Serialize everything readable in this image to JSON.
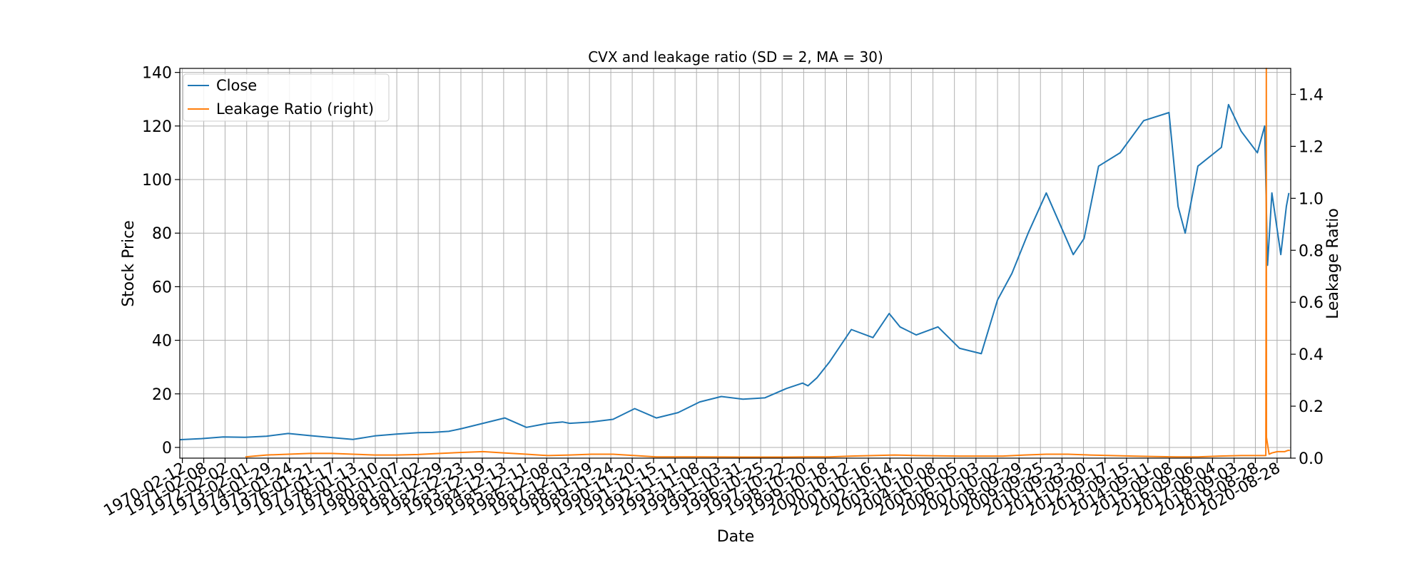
{
  "chart_data": {
    "type": "line",
    "title": "CVX and leakage ratio (SD = 2, MA = 30)",
    "xlabel": "Date",
    "ylabel": "Stock Price",
    "y2label": "Leakage Ratio",
    "grid": true,
    "legend_position": "top-left",
    "xlim": [
      "1969-12-31",
      "2021-04-15"
    ],
    "ylim": [
      -4,
      141.5
    ],
    "y2lim": [
      0.0,
      1.5
    ],
    "yticks": [
      0,
      20,
      40,
      60,
      80,
      100,
      120,
      140
    ],
    "y2ticks": [
      0.0,
      0.2,
      0.4,
      0.6,
      0.8,
      1.0,
      1.2,
      1.4
    ],
    "xticks": [
      "1970-02-12",
      "1971-02-08",
      "1972-02-02",
      "1973-02-01",
      "1974-01-29",
      "1975-01-24",
      "1976-01-21",
      "1977-01-17",
      "1978-01-13",
      "1979-01-10",
      "1980-01-07",
      "1981-01-02",
      "1981-12-29",
      "1982-12-23",
      "1983-12-19",
      "1984-12-13",
      "1985-12-11",
      "1986-12-08",
      "1987-12-03",
      "1988-11-29",
      "1989-11-24",
      "1990-11-20",
      "1991-11-15",
      "1992-11-11",
      "1993-11-08",
      "1994-11-03",
      "1995-10-31",
      "1996-10-25",
      "1997-10-22",
      "1998-10-20",
      "1999-10-18",
      "2000-10-12",
      "2001-10-16",
      "2002-10-14",
      "2003-10-10",
      "2004-10-08",
      "2005-10-05",
      "2006-10-03",
      "2007-10-02",
      "2008-09-29",
      "2009-09-25",
      "2010-09-23",
      "2011-09-20",
      "2012-09-17",
      "2013-09-15",
      "2014-09-11",
      "2015-09-08",
      "2016-09-06",
      "2017-09-04",
      "2018-09-03",
      "2019-08-28",
      "2020-08-28"
    ],
    "series": [
      {
        "name": "Close",
        "color": "#1f77b4",
        "axis": "left",
        "x": [
          "1970-01-01",
          "1971-01-01",
          "1972-01-01",
          "1973-01-01",
          "1974-01-01",
          "1975-01-01",
          "1976-01-01",
          "1977-01-01",
          "1978-01-01",
          "1979-01-01",
          "1980-01-01",
          "1981-01-01",
          "1981-09-01",
          "1982-06-01",
          "1983-01-01",
          "1984-01-01",
          "1985-01-01",
          "1986-01-01",
          "1987-01-01",
          "1987-09-01",
          "1988-01-01",
          "1989-01-01",
          "1990-01-01",
          "1991-01-01",
          "1992-01-01",
          "1993-01-01",
          "1994-01-01",
          "1995-01-01",
          "1996-01-01",
          "1997-01-01",
          "1998-01-01",
          "1998-10-01",
          "1999-01-01",
          "1999-06-01",
          "2000-01-01",
          "2001-01-01",
          "2002-01-01",
          "2002-10-01",
          "2003-04-01",
          "2004-01-01",
          "2005-01-01",
          "2006-01-01",
          "2007-01-01",
          "2007-10-01",
          "2008-06-01",
          "2009-03-01",
          "2010-01-01",
          "2011-04-01",
          "2011-10-01",
          "2012-06-01",
          "2013-06-01",
          "2014-07-01",
          "2015-09-01",
          "2016-02-01",
          "2016-06-01",
          "2017-01-01",
          "2018-02-01",
          "2018-06-01",
          "2019-01-01",
          "2019-10-01",
          "2020-02-01",
          "2020-03-20",
          "2020-06-01",
          "2020-10-30",
          "2021-02-01",
          "2021-03-15"
        ],
        "values": [
          2.9,
          3.3,
          3.9,
          3.8,
          4.2,
          5.2,
          4.4,
          3.7,
          3.0,
          4.3,
          5.0,
          5.5,
          5.6,
          6.0,
          7.0,
          9.0,
          11.0,
          7.5,
          9.0,
          9.5,
          9.0,
          9.5,
          10.5,
          14.5,
          11.0,
          13.0,
          17.0,
          19.0,
          18.0,
          18.5,
          22.0,
          24.0,
          23.0,
          26.0,
          32.0,
          44.0,
          41.0,
          50.0,
          45.0,
          42.0,
          45.0,
          37.0,
          35.0,
          55.0,
          65.0,
          80.0,
          95.0,
          72.0,
          78.0,
          105.0,
          110.0,
          122.0,
          125.0,
          90.0,
          80.0,
          105.0,
          112.0,
          128.0,
          118.0,
          110.0,
          120.0,
          68.0,
          95.0,
          72.0,
          90.0,
          95.0
        ]
      },
      {
        "name": "Leakage Ratio (right)",
        "color": "#ff7f0e",
        "axis": "right",
        "x": [
          "1973-01-10",
          "1974-01-01",
          "1975-01-01",
          "1976-01-01",
          "1977-01-01",
          "1978-01-01",
          "1979-01-01",
          "1980-01-01",
          "1981-01-01",
          "1982-01-01",
          "1983-01-01",
          "1984-01-01",
          "1985-01-01",
          "1986-01-01",
          "1987-01-01",
          "1988-01-01",
          "1989-01-01",
          "1990-01-01",
          "1991-01-01",
          "1992-01-01",
          "1994-01-01",
          "1996-01-01",
          "1998-01-01",
          "1999-01-01",
          "2000-01-01",
          "2001-01-01",
          "2002-01-01",
          "2003-01-01",
          "2004-01-01",
          "2006-01-01",
          "2008-01-01",
          "2009-01-01",
          "2010-01-01",
          "2011-01-01",
          "2012-01-01",
          "2013-01-01",
          "2014-01-01",
          "2015-01-01",
          "2016-01-01",
          "2017-01-01",
          "2018-01-01",
          "2019-01-01",
          "2020-01-01",
          "2020-02-20",
          "2020-02-26",
          "2020-02-28",
          "2020-03-02",
          "2020-04-15",
          "2020-06-01",
          "2020-09-01",
          "2021-01-01",
          "2021-03-01",
          "2021-04-01"
        ],
        "values": [
          0.005,
          0.012,
          0.015,
          0.018,
          0.018,
          0.015,
          0.012,
          0.012,
          0.014,
          0.018,
          0.022,
          0.025,
          0.02,
          0.015,
          0.01,
          0.012,
          0.015,
          0.015,
          0.01,
          0.005,
          0.005,
          0.004,
          0.004,
          0.005,
          0.005,
          0.008,
          0.01,
          0.012,
          0.01,
          0.008,
          0.008,
          0.012,
          0.015,
          0.015,
          0.012,
          0.01,
          0.008,
          0.006,
          0.005,
          0.005,
          0.008,
          0.01,
          0.01,
          0.01,
          0.8,
          1.5,
          0.08,
          0.015,
          0.02,
          0.025,
          0.025,
          0.03,
          0.03
        ]
      }
    ]
  }
}
